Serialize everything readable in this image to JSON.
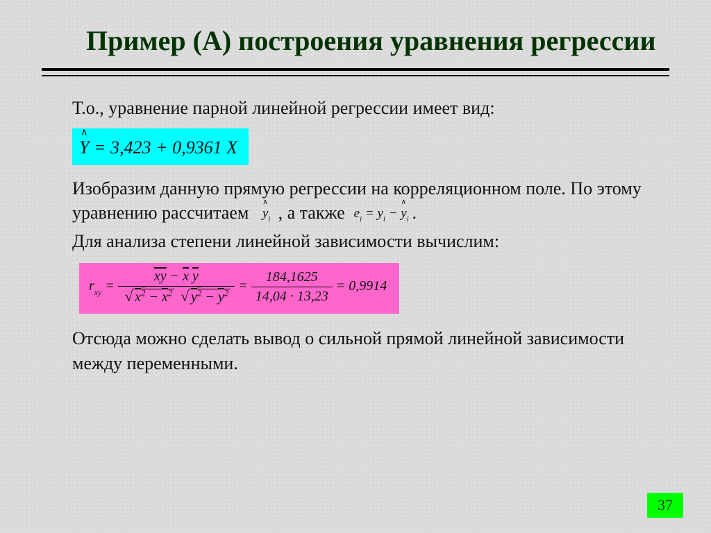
{
  "title": "Пример (А) построения уравнения регрессии",
  "intro": "Т.о., уравнение парной линейной регрессии имеет вид:",
  "equation1": {
    "intercept": "3,423",
    "slope": "0,9361",
    "highlight_bg": "#00ffff"
  },
  "para2_a": "Изобразим данную прямую регрессии на корреляционном поле. По этому уравнению рассчитаем",
  "para2_b": ", а также",
  "para2_c": ".",
  "residual": {
    "lhs": "e",
    "rhs_y1": "y",
    "rhs_y2": "y"
  },
  "para3": "Для анализа степени линейной зависимости вычислим:",
  "equation2": {
    "num_val": "184,1625",
    "den_a": "14,04",
    "den_b": "13,23",
    "result": "0,9914",
    "highlight_bg": "#ff66cc"
  },
  "conclusion": "Отсюда можно сделать вывод о сильной прямой линейной зависимости между переменными.",
  "page_number": "37",
  "colors": {
    "title": "#003300",
    "background": "#dcdcdc",
    "page_badge_bg": "#00ff00"
  },
  "fontsizes": {
    "title": 40,
    "body": 26,
    "math_small": 20,
    "pagenum": 22
  }
}
